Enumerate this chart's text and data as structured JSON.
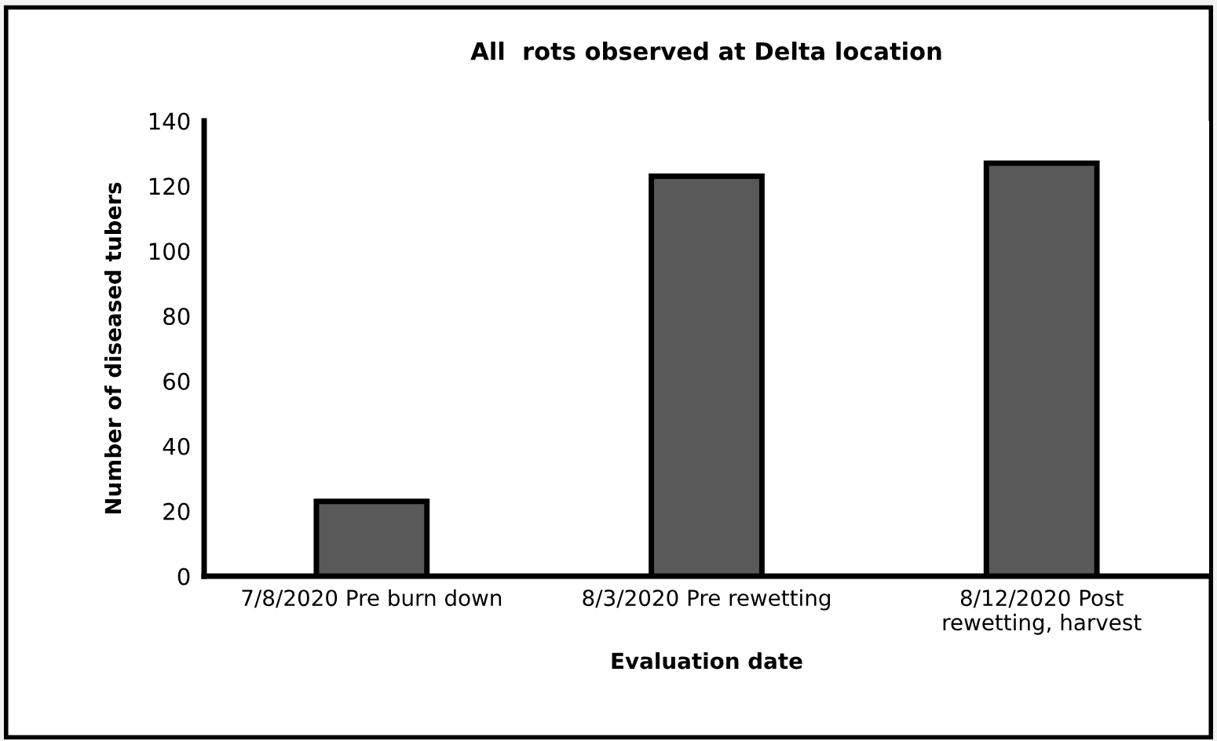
{
  "chart_data": {
    "type": "bar",
    "title": "All  rots observed at Delta location",
    "xlabel": "Evaluation date",
    "ylabel": "Number of diseased tubers",
    "categories": [
      "7/8/2020 Pre burn down",
      "8/3/2020 Pre rewetting",
      "8/12/2020 Post\nrewetting, harvest"
    ],
    "values": [
      23,
      123,
      127
    ],
    "color": "#595959",
    "ylim": [
      0,
      140
    ],
    "yticks": [
      0,
      20,
      40,
      60,
      80,
      100,
      120,
      140
    ],
    "grid": false
  }
}
